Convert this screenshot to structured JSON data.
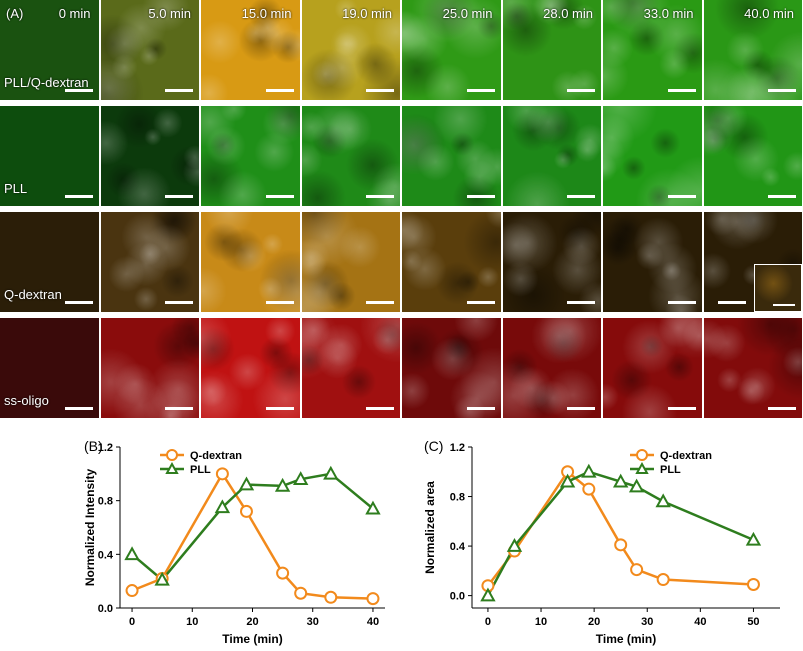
{
  "panel_a": {
    "letter": "(A)",
    "time_labels": [
      "0 min",
      "5.0 min",
      "15.0 min",
      "19.0 min",
      "25.0 min",
      "28.0 min",
      "33.0 min",
      "40.0 min"
    ],
    "rows": [
      {
        "label": "PLL/Q-dextran",
        "colors": [
          "#1a5210",
          "#5a6a1a",
          "#d89a14",
          "#b7a11e",
          "#2f9a16",
          "#2e9316",
          "#2a9a14",
          "#2a9816"
        ]
      },
      {
        "label": "PLL",
        "colors": [
          "#0d4d0d",
          "#0c3a0c",
          "#1f8f18",
          "#1f8a18",
          "#1e8a18",
          "#1d8818",
          "#219a16",
          "#219616"
        ]
      },
      {
        "label": "Q-dextran",
        "colors": [
          "#2b1e08",
          "#4a3410",
          "#c88a18",
          "#a57314",
          "#5a3e0c",
          "#2a1d06",
          "#2a1d06",
          "#2a1d06"
        ]
      },
      {
        "label": "ss-oligo",
        "colors": [
          "#3a0a0a",
          "#8a0c0c",
          "#c01212",
          "#a01010",
          "#6e0a0a",
          "#780a0a",
          "#860b0b",
          "#820b0b"
        ]
      }
    ]
  },
  "panel_b": {
    "letter": "(B)"
  },
  "panel_c": {
    "letter": "(C)"
  },
  "chart_data": [
    {
      "type": "line",
      "xlabel": "Time (min)",
      "ylabel": "Normalized Intensity",
      "xlim": [
        -2,
        42
      ],
      "ylim": [
        0,
        1.2
      ],
      "xticks": [
        "0",
        "10",
        "20",
        "30",
        "40"
      ],
      "yticks": [
        "0.0",
        "0.4",
        "0.8",
        "1.2"
      ],
      "series": [
        {
          "name": "Q-dextran",
          "color": "#f28a1c",
          "marker": "circle",
          "x": [
            0,
            5,
            15,
            19,
            25,
            28,
            33,
            40
          ],
          "y": [
            0.13,
            0.22,
            1.0,
            0.72,
            0.26,
            0.11,
            0.08,
            0.07
          ]
        },
        {
          "name": "PLL",
          "color": "#2e7d1e",
          "marker": "triangle",
          "x": [
            0,
            5,
            15,
            19,
            25,
            28,
            33,
            40
          ],
          "y": [
            0.4,
            0.21,
            0.75,
            0.92,
            0.91,
            0.96,
            1.0,
            0.74
          ]
        }
      ]
    },
    {
      "type": "line",
      "xlabel": "Time (min)",
      "ylabel": "Normalized area",
      "xlim": [
        -3,
        55
      ],
      "ylim": [
        -0.1,
        1.2
      ],
      "xticks": [
        "0",
        "10",
        "20",
        "30",
        "40",
        "50"
      ],
      "yticks": [
        "0.0",
        "0.4",
        "0.8",
        "1.2"
      ],
      "series": [
        {
          "name": "Q-dextran",
          "color": "#f28a1c",
          "marker": "circle",
          "x": [
            0,
            5,
            15,
            19,
            25,
            28,
            33,
            50
          ],
          "y": [
            0.08,
            0.36,
            1.0,
            0.86,
            0.41,
            0.21,
            0.13,
            0.09
          ]
        },
        {
          "name": "PLL",
          "color": "#2e7d1e",
          "marker": "triangle",
          "x": [
            0,
            5,
            15,
            19,
            25,
            28,
            33,
            50
          ],
          "y": [
            0.0,
            0.4,
            0.92,
            1.0,
            0.92,
            0.88,
            0.76,
            0.45
          ]
        }
      ]
    }
  ]
}
